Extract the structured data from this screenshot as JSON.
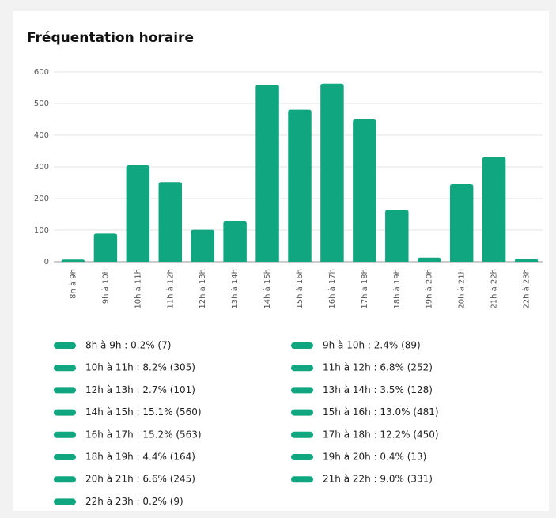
{
  "chart_data": {
    "type": "bar",
    "title": "Fréquentation horaire",
    "categories": [
      "8h à 9h",
      "9h à 10h",
      "10h à 11h",
      "11h à 12h",
      "12h à 13h",
      "13h à 14h",
      "14h à 15h",
      "15h à 16h",
      "16h à 17h",
      "17h à 18h",
      "18h à 19h",
      "19h à 20h",
      "20h à 21h",
      "21h à 22h",
      "22h à 23h"
    ],
    "values": [
      7,
      89,
      305,
      252,
      101,
      128,
      560,
      481,
      563,
      450,
      164,
      13,
      245,
      331,
      9
    ],
    "value_labels": [
      "8h à 9h : 0.2% (7)",
      "9h à 10h : 2.4% (89)",
      "10h à 11h : 8.2% (305)",
      "11h à 12h : 6.8% (252)",
      "12h à 13h : 2.7% (101)",
      "13h à 14h : 3.5% (128)",
      "14h à 15h : 15.1% (560)",
      "15h à 16h : 13.0% (481)",
      "16h à 17h : 15.2% (563)",
      "17h à 18h : 12.2% (450)",
      "18h à 19h : 4.4% (164)",
      "19h à 20h : 0.4% (13)",
      "20h à 21h : 6.6% (245)",
      "21h à 22h : 9.0% (331)",
      "22h à 23h : 0.2% (9)"
    ],
    "color": "#10a67f",
    "ylim": [
      0,
      600
    ],
    "yticks": [
      0,
      100,
      200,
      300,
      400,
      500,
      600
    ],
    "grid": true
  }
}
